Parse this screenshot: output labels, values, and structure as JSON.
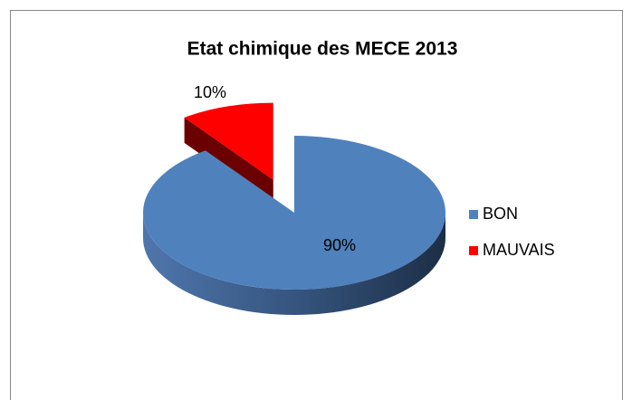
{
  "chart_data": {
    "type": "pie3d",
    "title": "Etat chimique des MECE 2013",
    "categories": [
      "BON",
      "MAUVAIS"
    ],
    "values": [
      90,
      10
    ],
    "value_labels": [
      "90%",
      "10%"
    ],
    "colors": [
      "#4f81bd",
      "#ff0000"
    ],
    "legend": "right"
  }
}
